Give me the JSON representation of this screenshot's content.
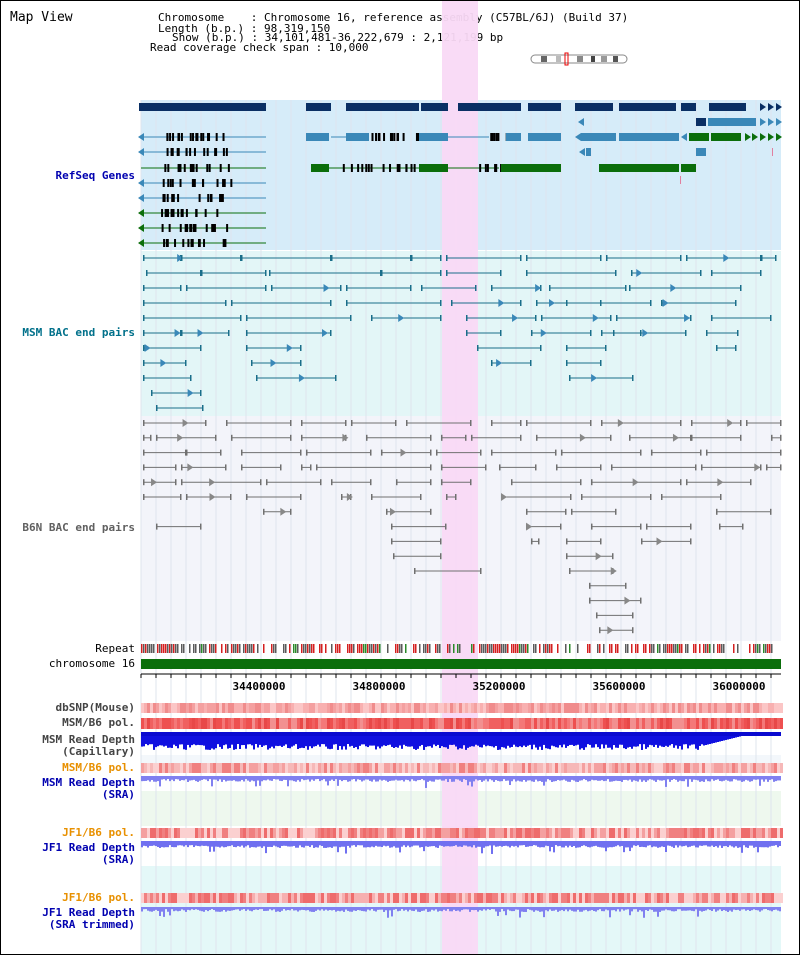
{
  "header": {
    "title": "Map View",
    "info_lines": [
      "Chromosome    : Chromosome 16, reference assembly (C57BL/6J) (Build 37)",
      "Length (b.p.) : 98,319,150",
      "Show (b.p.) : 34,101,481-36,222,679 : 2,121,199 bp",
      "Read coverage check span : 10,000"
    ]
  },
  "tracks": {
    "refseq": "RefSeq Genes",
    "msm_bac": "MSM BAC end pairs",
    "b6n_bac": "B6N BAC end pairs",
    "repeat": "Repeat",
    "chromosome": "chromosome 16",
    "dbsnp": "dbSNP(Mouse)",
    "msm_b6_pol_1": "MSM/B6 pol.",
    "msm_read_depth_cap_1": "MSM Read Depth",
    "msm_read_depth_cap_2": "(Capillary)",
    "msm_b6_pol_2": "MSM/B6 pol.",
    "msm_read_depth_sra_1": "MSM Read Depth",
    "msm_read_depth_sra_2": "(SRA)",
    "jf1_b6_pol_1": "JF1/B6 pol.",
    "jf1_read_depth_sra_1": "JF1 Read Depth",
    "jf1_read_depth_sra_2": "(SRA)",
    "jf1_b6_pol_2": "JF1/B6 pol.",
    "jf1_read_depth_trim_1": "JF1 Read Depth",
    "jf1_read_depth_trim_2": "(SRA trimmed)"
  },
  "axis": {
    "ticks": [
      "34400000",
      "34800000",
      "35200000",
      "35600000",
      "36000000"
    ]
  },
  "colors": {
    "gene_dark": "#0a2f64",
    "gene_mid": "#3a88b8",
    "gene_green": "#0b6e0b",
    "msm_line": "#1a6e8a",
    "b6n_line": "#707070",
    "highlight": "#f9d9f5",
    "chrom_green": "#0b6e0b",
    "label_blue": "#0000b0",
    "label_teal": "#00708a",
    "label_gray": "#606060",
    "label_orange": "#e89000"
  }
}
